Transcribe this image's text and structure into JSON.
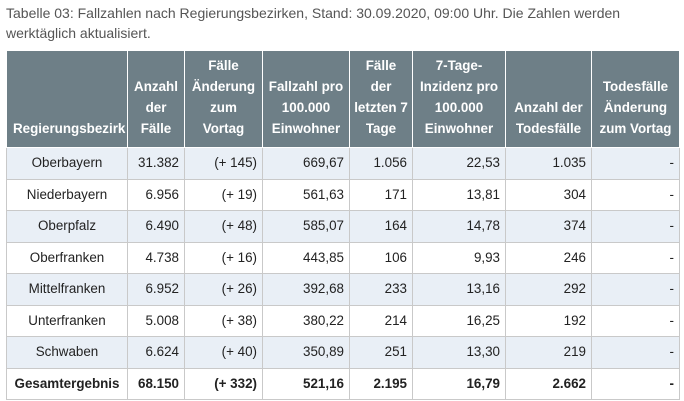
{
  "caption": "Tabelle 03: Fallzahlen nach Regierungsbezirken, Stand: 30.09.2020, 09:00 Uhr. Die Zahlen werden werktäglich aktualisiert.",
  "headers": [
    "Regierungsbezirk",
    "Anzahl der Fälle",
    "Fälle Änderung zum Vortag",
    "Fallzahl pro 100.000 Einwohner",
    "Fälle der letzten 7 Tage",
    "7-Tage-Inzidenz pro 100.000 Einwohner",
    "Anzahl der Todesfälle",
    "Todesfälle Änderung zum Vortag"
  ],
  "rows": [
    [
      "Oberbayern",
      "31.382",
      "(+ 145)",
      "669,67",
      "1.056",
      "22,53",
      "1.035",
      "-"
    ],
    [
      "Niederbayern",
      "6.956",
      "(+ 19)",
      "561,63",
      "171",
      "13,81",
      "304",
      "-"
    ],
    [
      "Oberpfalz",
      "6.490",
      "(+ 48)",
      "585,07",
      "164",
      "14,78",
      "374",
      "-"
    ],
    [
      "Oberfranken",
      "4.738",
      "(+ 16)",
      "443,85",
      "106",
      "9,93",
      "246",
      "-"
    ],
    [
      "Mittelfranken",
      "6.952",
      "(+ 26)",
      "392,68",
      "233",
      "13,16",
      "292",
      "-"
    ],
    [
      "Unterfranken",
      "5.008",
      "(+ 38)",
      "380,22",
      "214",
      "16,25",
      "192",
      "-"
    ],
    [
      "Schwaben",
      "6.624",
      "(+ 40)",
      "350,89",
      "251",
      "13,30",
      "219",
      "-"
    ]
  ],
  "total": [
    "Gesamtergebnis",
    "68.150",
    "(+ 332)",
    "521,16",
    "2.195",
    "16,79",
    "2.662",
    "-"
  ],
  "colors": {
    "header_bg": "#6e7f87",
    "alt_row_bg": "#e9eff6",
    "border": "#c9c9c9"
  }
}
